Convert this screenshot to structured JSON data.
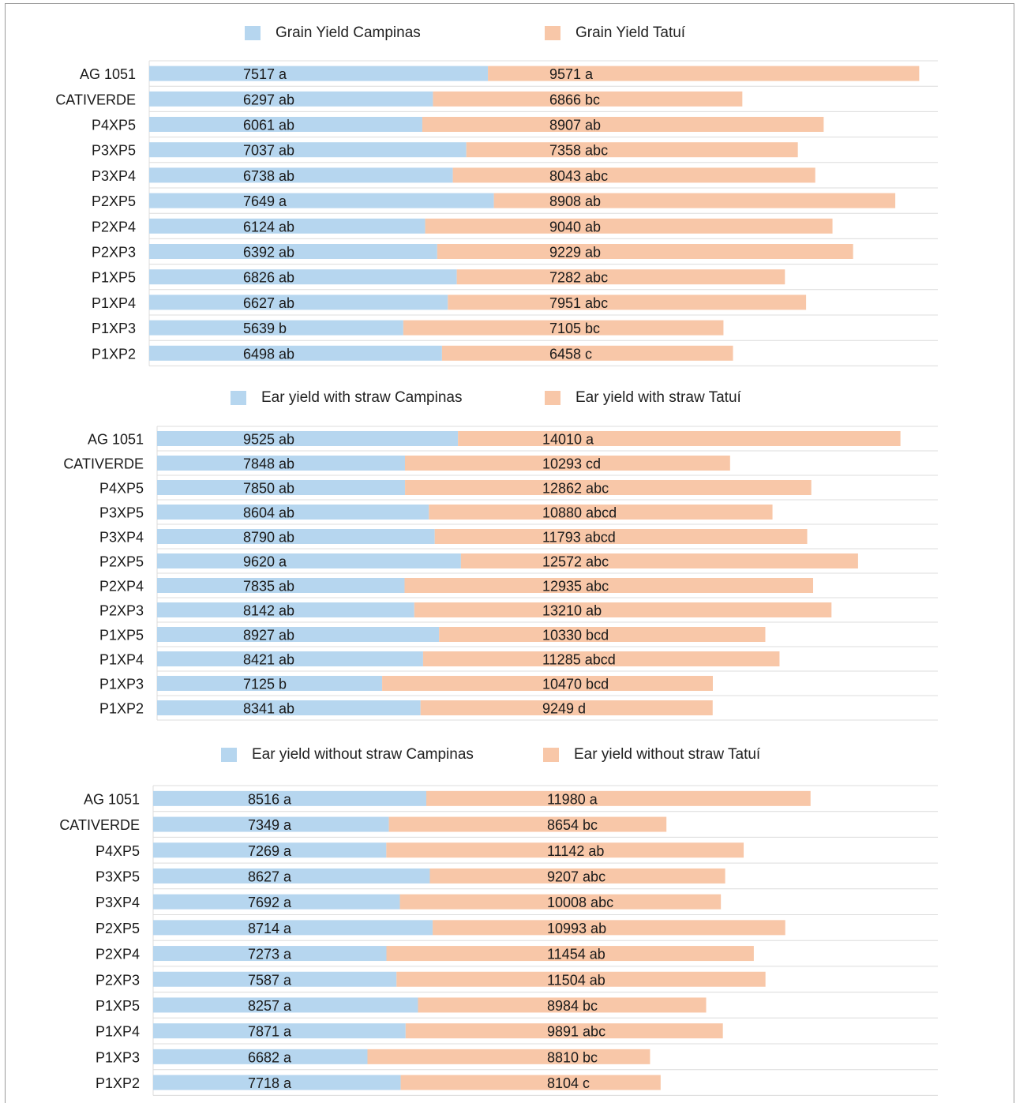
{
  "colors": {
    "campinas": "#b6d6ef",
    "tatui": "#f8c7a8",
    "grid": "#dcdcdc"
  },
  "chart_data": [
    {
      "type": "bar",
      "orientation": "horizontal",
      "stacked": true,
      "grid": true,
      "legend_position": "top",
      "categories": [
        "AG 1051",
        "CATIVERDE",
        "P4XP5",
        "P3XP5",
        "P3XP4",
        "P2XP5",
        "P2XP4",
        "P2XP3",
        "P1XP5",
        "P1XP4",
        "P1XP3",
        "P1XP2"
      ],
      "series": [
        {
          "name": "Grain Yield Campinas",
          "values": [
            7517,
            6297,
            6061,
            7037,
            6738,
            7649,
            6124,
            6392,
            6826,
            6627,
            5639,
            6498
          ],
          "letters": [
            "a",
            "ab",
            "ab",
            "ab",
            "ab",
            "a",
            "ab",
            "ab",
            "ab",
            "ab",
            "b",
            "ab"
          ]
        },
        {
          "name": "Grain Yield Tatuí",
          "values": [
            9571,
            6866,
            8907,
            7358,
            8043,
            8908,
            9040,
            9229,
            7282,
            7951,
            7105,
            6458
          ],
          "letters": [
            "a",
            "bc",
            "ab",
            "abc",
            "abc",
            "ab",
            "ab",
            "ab",
            "abc",
            "abc",
            "bc",
            "c"
          ]
        }
      ]
    },
    {
      "type": "bar",
      "orientation": "horizontal",
      "stacked": true,
      "grid": true,
      "legend_position": "top",
      "categories": [
        "AG 1051",
        "CATIVERDE",
        "P4XP5",
        "P3XP5",
        "P3XP4",
        "P2XP5",
        "P2XP4",
        "P2XP3",
        "P1XP5",
        "P1XP4",
        "P1XP3",
        "P1XP2"
      ],
      "series": [
        {
          "name": "Ear yield with straw Campinas",
          "values": [
            9525,
            7848,
            7850,
            8604,
            8790,
            9620,
            7835,
            8142,
            8927,
            8421,
            7125,
            8341
          ],
          "letters": [
            "ab",
            "ab",
            "ab",
            "ab",
            "ab",
            "a",
            "ab",
            "ab",
            "ab",
            "ab",
            "b",
            "ab"
          ]
        },
        {
          "name": "Ear yield with straw Tatuí",
          "values": [
            14010,
            10293,
            12862,
            10880,
            11793,
            12572,
            12935,
            13210,
            10330,
            11285,
            10470,
            9249
          ],
          "letters": [
            "a",
            "cd",
            "abc",
            "abcd",
            "abcd",
            "abc",
            "abc",
            "ab",
            "bcd",
            "abcd",
            "bcd",
            "d"
          ]
        }
      ]
    },
    {
      "type": "bar",
      "orientation": "horizontal",
      "stacked": true,
      "grid": true,
      "legend_position": "top",
      "categories": [
        "AG 1051",
        "CATIVERDE",
        "P4XP5",
        "P3XP5",
        "P3XP4",
        "P2XP5",
        "P2XP4",
        "P2XP3",
        "P1XP5",
        "P1XP4",
        "P1XP3",
        "P1XP2"
      ],
      "series": [
        {
          "name": "Ear yield without straw Campinas",
          "values": [
            8516,
            7349,
            7269,
            8627,
            7692,
            8714,
            7273,
            7587,
            8257,
            7871,
            6682,
            7718
          ],
          "letters": [
            "a",
            "a",
            "a",
            "a",
            "a",
            "a",
            "a",
            "a",
            "a",
            "a",
            "a",
            "a"
          ]
        },
        {
          "name": "Ear yield without straw Tatuí",
          "values": [
            11980,
            8654,
            11142,
            9207,
            10008,
            10993,
            11454,
            11504,
            8984,
            9891,
            8810,
            8104
          ],
          "letters": [
            "a",
            "bc",
            "ab",
            "abc",
            "abc",
            "ab",
            "ab",
            "ab",
            "bc",
            "abc",
            "bc",
            "c"
          ]
        }
      ]
    }
  ]
}
